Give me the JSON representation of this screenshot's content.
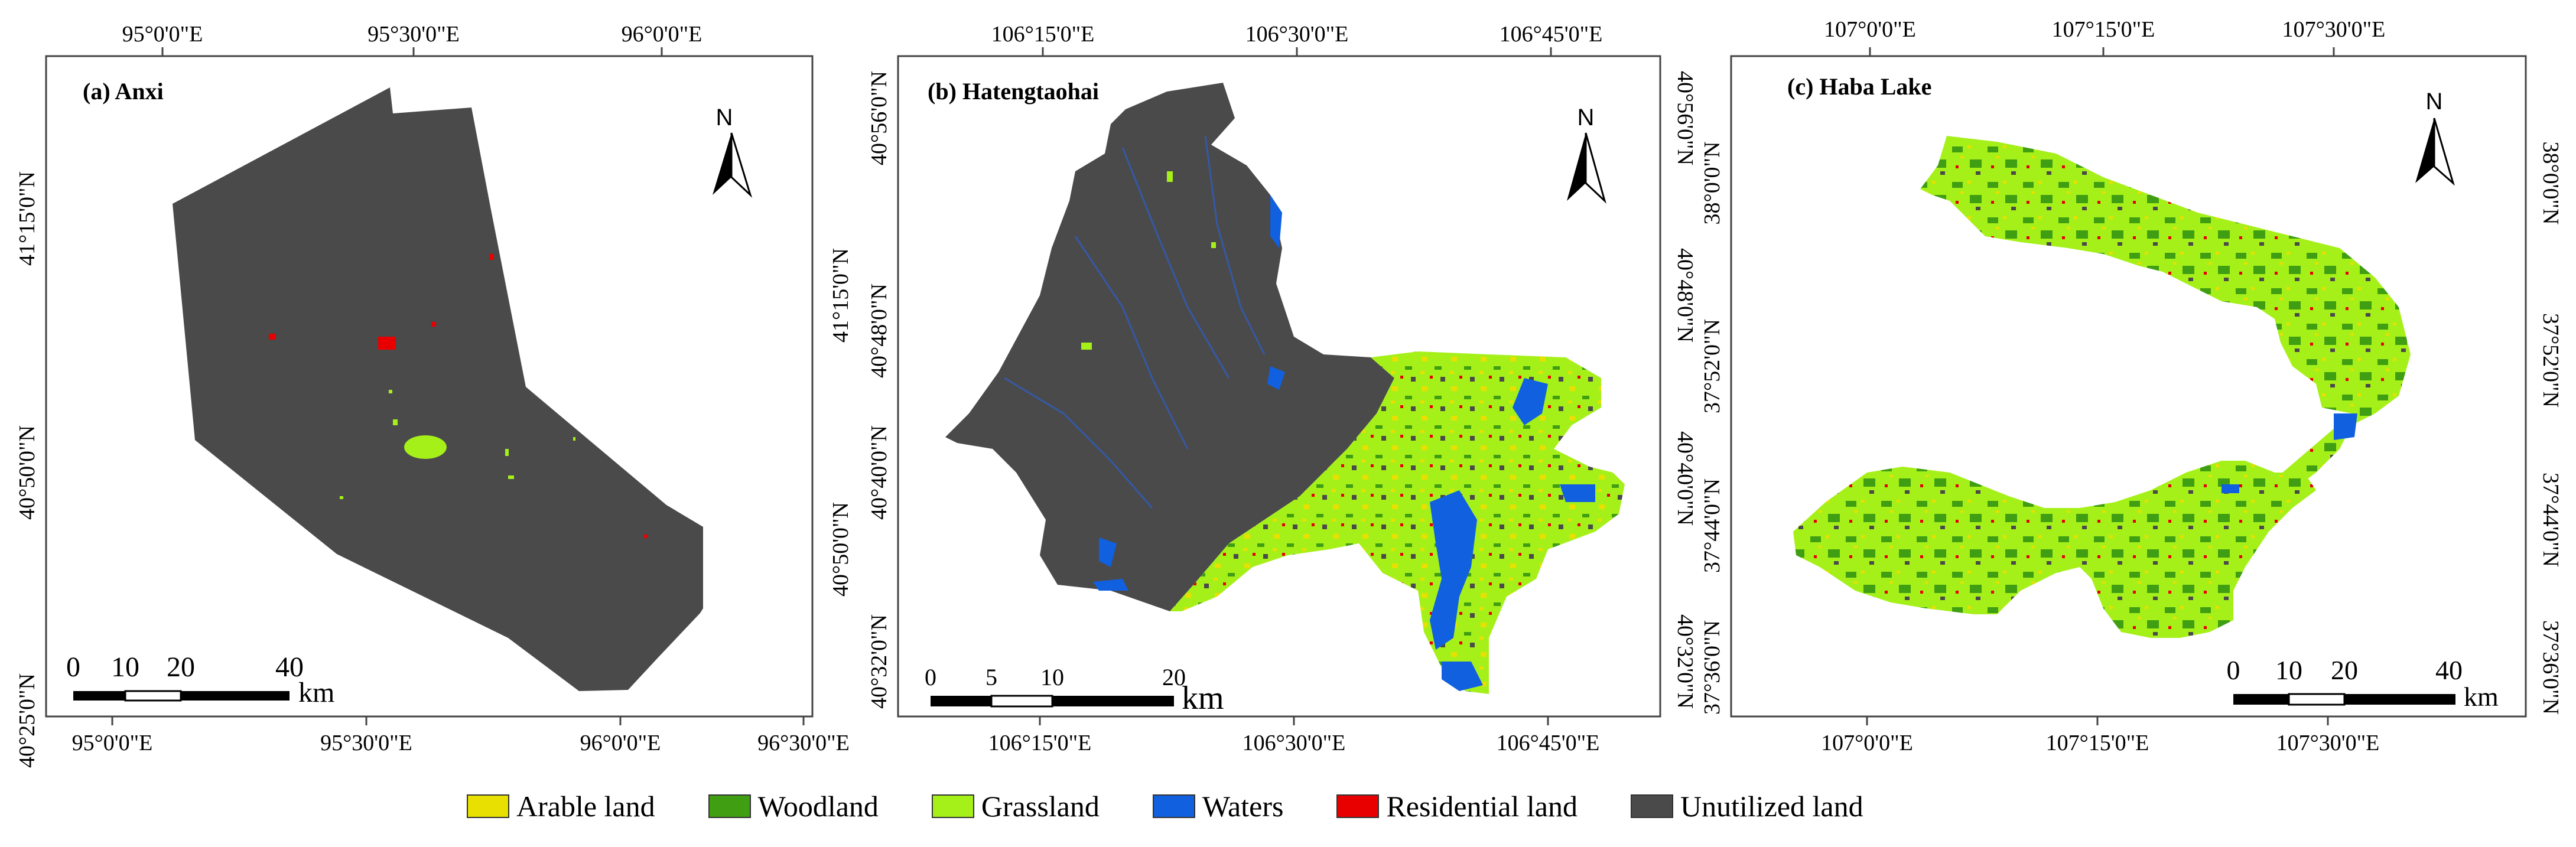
{
  "colors": {
    "arable": "#e8e000",
    "woodland": "#3f9e12",
    "grassland": "#a6f01a",
    "waters": "#1060e0",
    "residential": "#e80000",
    "unutilized": "#4a4a4a"
  },
  "panels": [
    {
      "title": "(a) Anxi",
      "top_ticks": [
        "95°0'0\"E",
        "95°30'0\"E",
        "96°0'0\"E"
      ],
      "bottom_ticks": [
        "95°0'0\"E",
        "95°30'0\"E",
        "96°0'0\"E",
        "96°30'0\"E"
      ],
      "left_ticks": [
        "41°15'0\"N",
        "40°50'0\"N",
        "40°25'0\"N"
      ],
      "right_ticks": [],
      "scale_labels": [
        "0",
        "10",
        "20",
        "40"
      ],
      "scale_unit": "km",
      "north": "N"
    },
    {
      "title": "(b) Hatengtaohai",
      "top_ticks": [
        "106°15'0\"E",
        "106°30'0\"E",
        "106°45'0\"E"
      ],
      "bottom_ticks": [
        "106°15'0\"E",
        "106°30'0\"E",
        "106°45'0\"E"
      ],
      "left_ticks": [
        "40°56'0\"N",
        "41°15'0\"N",
        "40°48'0\"N",
        "40°40'0\"N",
        "40°50'0\"N",
        "40°32'0\"N"
      ],
      "right_ticks": [
        "40°56'0\"N",
        "40°48'0\"N",
        "40°40'0\"N",
        "40°32'0\"N"
      ],
      "scale_labels": [
        "0",
        "5",
        "10",
        "20"
      ],
      "scale_unit": "km",
      "north": "N"
    },
    {
      "title": "(c) Haba Lake",
      "top_ticks": [
        "107°0'0\"E",
        "107°15'0\"E",
        "107°30'0\"E"
      ],
      "bottom_ticks": [
        "107°0'0\"E",
        "107°15'0\"E",
        "107°30'0\"E"
      ],
      "left_ticks": [
        "38°0'0\"N",
        "37°52'0\"N",
        "37°44'0\"N",
        "37°36'0\"N"
      ],
      "right_ticks": [
        "38°0'0\"N",
        "37°52'0\"N",
        "37°44'0\"N",
        "37°36'0\"N"
      ],
      "scale_labels": [
        "0",
        "10",
        "20",
        "40"
      ],
      "scale_unit": "km",
      "north": "N"
    }
  ],
  "legend": [
    {
      "label": "Arable land",
      "color": "#e8e000"
    },
    {
      "label": "Woodland",
      "color": "#3f9e12"
    },
    {
      "label": "Grassland",
      "color": "#a6f01a"
    },
    {
      "label": "Waters",
      "color": "#1060e0"
    },
    {
      "label": "Residential land",
      "color": "#e80000"
    },
    {
      "label": "Unutilized land",
      "color": "#4a4a4a"
    }
  ]
}
